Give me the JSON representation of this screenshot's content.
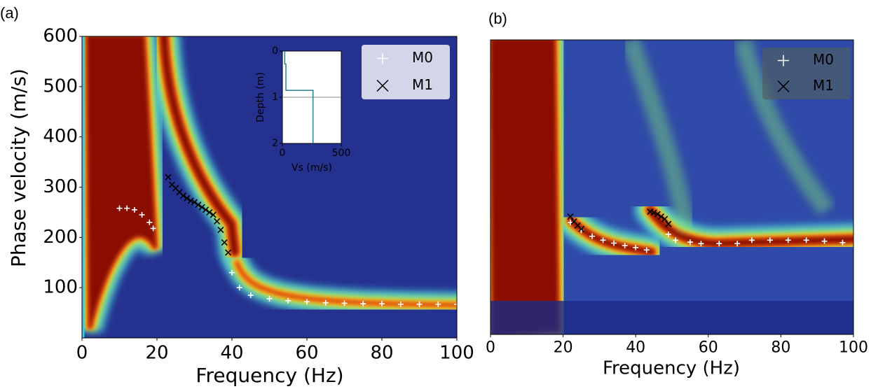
{
  "chart_data": [
    {
      "type": "scatter",
      "panel_label": "(a)",
      "xlabel": "Frequency (Hz)",
      "ylabel": "Phase velocity (m/s)",
      "xlim": [
        0,
        100
      ],
      "ylim": [
        0,
        600
      ],
      "xticks": [
        0,
        20,
        40,
        60,
        80,
        100
      ],
      "yticks": [
        100,
        200,
        300,
        400,
        500,
        600
      ],
      "legend": "upper right",
      "series": [
        {
          "name": "M0",
          "color": "#ffffff",
          "marker": "plus",
          "x": [
            10,
            12,
            14,
            16,
            18,
            19,
            40,
            42,
            45,
            50,
            55,
            60,
            65,
            70,
            75,
            80,
            85,
            90,
            95,
            100
          ],
          "values": [
            258,
            258,
            255,
            245,
            230,
            218,
            130,
            100,
            85,
            78,
            74,
            72,
            70,
            69,
            68,
            68,
            67,
            67,
            67,
            67
          ]
        },
        {
          "name": "M1",
          "color": "#000000",
          "marker": "cross",
          "x": [
            23,
            24,
            25,
            26,
            27,
            28,
            29,
            30,
            31,
            32,
            33,
            34,
            35,
            36,
            37,
            38,
            39
          ],
          "values": [
            320,
            305,
            298,
            290,
            283,
            278,
            273,
            270,
            265,
            260,
            255,
            250,
            245,
            232,
            215,
            190,
            170
          ]
        }
      ]
    },
    {
      "type": "line",
      "xlabel": "Vs (m/s)",
      "ylabel": "Depth (m)",
      "xlim": [
        0,
        500
      ],
      "ylim": [
        2,
        0
      ],
      "xticks": [
        0,
        500
      ],
      "yticks": [
        0,
        1,
        2
      ],
      "series": [
        {
          "color": "#2a7f8f",
          "x": [
            20,
            20,
            30,
            30,
            260,
            260
          ],
          "values": [
            0,
            0.28,
            0.28,
            0.85,
            0.85,
            2
          ]
        }
      ]
    },
    {
      "type": "scatter",
      "panel_label": "(b)",
      "xlabel": "Frequency (Hz)",
      "xlim": [
        0,
        100
      ],
      "ylim": [
        0,
        600
      ],
      "xticks": [
        0,
        20,
        40,
        60,
        80,
        100
      ],
      "legend": "upper right",
      "series": [
        {
          "name": "M0",
          "color": "#ffffff",
          "marker": "plus",
          "x": [
            22,
            25,
            28,
            31,
            34,
            37,
            40,
            43,
            49,
            51,
            55,
            58,
            63,
            68,
            72,
            77,
            82,
            87,
            92,
            97
          ],
          "values": [
            228,
            212,
            200,
            192,
            186,
            181,
            177,
            172,
            204,
            192,
            188,
            185,
            185,
            185,
            192,
            192,
            192,
            192,
            190,
            187
          ]
        },
        {
          "name": "M1",
          "color": "#000000",
          "marker": "cross",
          "x": [
            22,
            23,
            24,
            25,
            44,
            45,
            46,
            47,
            48,
            49
          ],
          "values": [
            240,
            230,
            222,
            215,
            250,
            248,
            245,
            240,
            235,
            225
          ]
        }
      ]
    }
  ]
}
